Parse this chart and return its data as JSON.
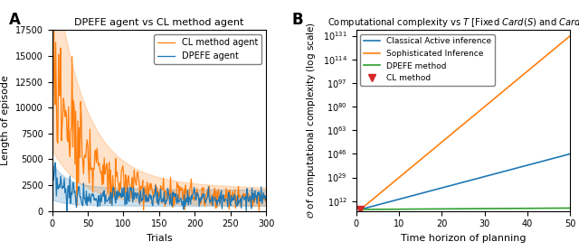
{
  "panel_A": {
    "title": "DPEFE agent vs CL method agent",
    "xlabel": "Trials",
    "ylabel": "Length of episode",
    "xlim": [
      0,
      300
    ],
    "ylim": [
      0,
      17500
    ],
    "yticks": [
      0,
      2500,
      5000,
      7500,
      10000,
      12500,
      15000,
      17500
    ],
    "dpefe_color": "#1f77b4",
    "cl_color": "#ff7f0e",
    "dpefe_label": "DPEFE agent",
    "cl_label": "CL method agent"
  },
  "panel_B": {
    "title": "Computational complexity vs $T$ [Fixed $\\mathit{Card}(S)$ and $\\mathit{Card}(U)$]",
    "xlabel": "Time horizon of planning",
    "ylabel": "$\\mathcal{O}$ of computational complexity (log scale)",
    "xlim": [
      0,
      50
    ],
    "ylim_exp_low": 5,
    "ylim_exp_high": 135,
    "xticks": [
      0,
      10,
      20,
      30,
      40,
      50
    ],
    "ytick_exps": [
      12,
      29,
      46,
      63,
      80,
      97,
      114,
      131
    ],
    "classical_color": "#1f77b4",
    "sophisticated_color": "#ff7f0e",
    "dpefe_color": "#2ca02c",
    "cl_color": "#d62728",
    "classical_label": "Classical Active inference",
    "sophisticated_label": "Sophisticated Inference",
    "dpefe_label": "DPEFE method",
    "cl_label": "CL method",
    "classical_log_start": 6,
    "classical_log_end": 46,
    "sophisticated_log_start": 6,
    "sophisticated_log_end": 131,
    "dpefe_log_start": 6,
    "dpefe_log_end": 7,
    "cl_log_point": 6,
    "cl_T_point": 1
  }
}
